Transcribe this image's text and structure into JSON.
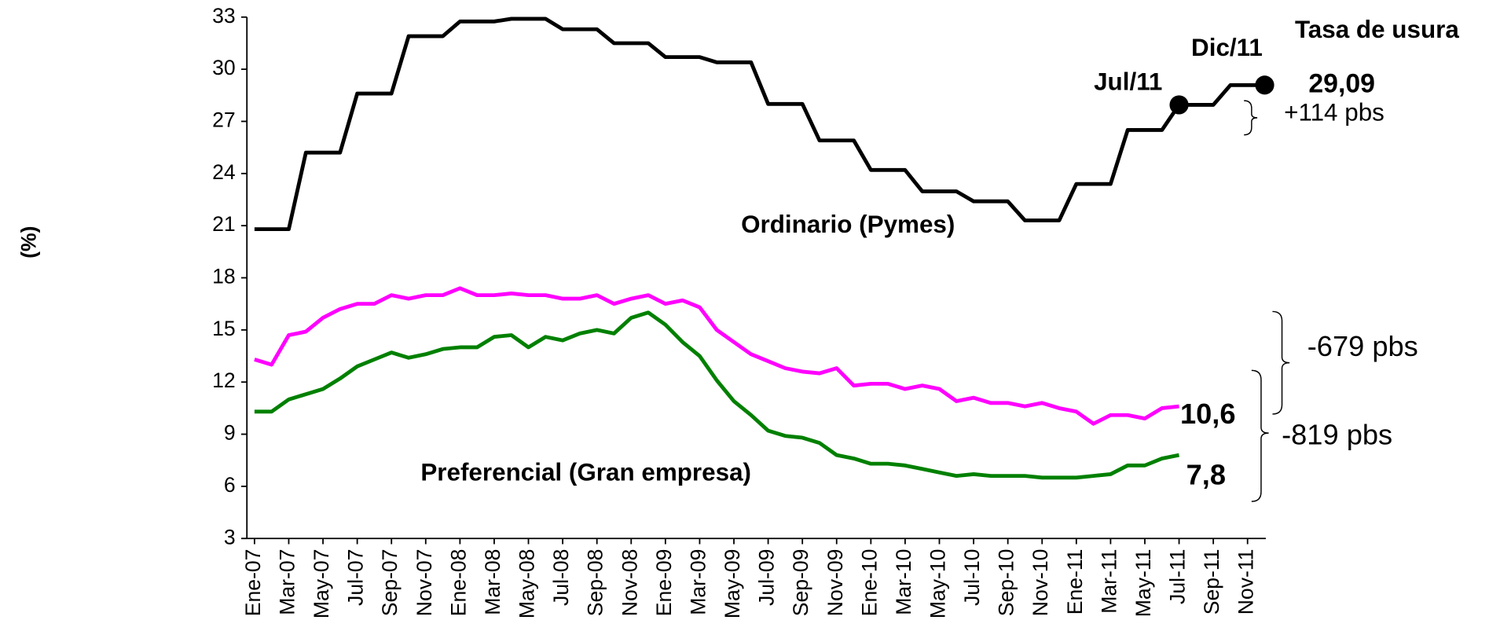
{
  "chart_data": {
    "type": "line",
    "y_label": "(%)",
    "categories": [
      "Ene-07",
      null,
      "Mar-07",
      null,
      "May-07",
      null,
      "Jul-07",
      null,
      "Sep-07",
      null,
      "Nov-07",
      null,
      "Ene-08",
      null,
      "Mar-08",
      null,
      "May-08",
      null,
      "Jul-08",
      null,
      "Sep-08",
      null,
      "Nov-08",
      null,
      "Ene-09",
      null,
      "Mar-09",
      null,
      "May-09",
      null,
      "Jul-09",
      null,
      "Sep-09",
      null,
      "Nov-09",
      null,
      "Ene-10",
      null,
      "Mar-10",
      null,
      "May-10",
      null,
      "Jul-10",
      null,
      "Sep-10",
      null,
      "Nov-10",
      null,
      "Ene-11",
      null,
      "Mar-11",
      null,
      "May-11",
      null,
      "Jul-11",
      null,
      "Sep-11",
      null,
      "Nov-11",
      null
    ],
    "series": [
      {
        "name": "Tasa de usura",
        "color": "#000000",
        "values": [
          20.8,
          20.8,
          20.8,
          25.2,
          25.2,
          25.2,
          28.6,
          28.6,
          28.6,
          31.9,
          31.9,
          31.9,
          32.75,
          32.75,
          32.75,
          32.9,
          32.9,
          32.9,
          32.3,
          32.3,
          32.3,
          31.5,
          31.5,
          31.5,
          30.7,
          30.7,
          30.7,
          30.4,
          30.4,
          30.4,
          28.0,
          28.0,
          28.0,
          25.9,
          25.9,
          25.9,
          24.2,
          24.2,
          24.2,
          22.97,
          22.97,
          22.97,
          22.4,
          22.4,
          22.4,
          21.3,
          21.3,
          21.3,
          23.4,
          23.4,
          23.4,
          26.5,
          26.5,
          26.5,
          27.95,
          27.95,
          27.95,
          29.09,
          29.09,
          29.09
        ]
      },
      {
        "name": "Ordinario (Pymes)",
        "color": "#ff00ff",
        "values": [
          13.3,
          13.0,
          14.7,
          14.9,
          15.7,
          16.2,
          16.5,
          16.5,
          17.0,
          16.8,
          17.0,
          17.0,
          17.4,
          17.0,
          17.0,
          17.1,
          17.0,
          17.0,
          16.8,
          16.8,
          17.0,
          16.5,
          16.8,
          17.0,
          16.5,
          16.7,
          16.3,
          15.0,
          14.3,
          13.6,
          13.2,
          12.8,
          12.6,
          12.5,
          12.8,
          11.8,
          11.9,
          11.9,
          11.6,
          11.8,
          11.6,
          10.9,
          11.1,
          10.8,
          10.8,
          10.6,
          10.8,
          10.5,
          10.3,
          9.6,
          10.1,
          10.1,
          9.9,
          10.5,
          10.6,
          null,
          null,
          null,
          null,
          null
        ]
      },
      {
        "name": "Preferencial (Gran empresa)",
        "color": "#008000",
        "values": [
          10.3,
          10.3,
          11.0,
          11.3,
          11.6,
          12.2,
          12.9,
          13.3,
          13.7,
          13.4,
          13.6,
          13.9,
          14.0,
          14.0,
          14.6,
          14.7,
          14.0,
          14.6,
          14.4,
          14.8,
          15.0,
          14.8,
          15.7,
          16.0,
          15.3,
          14.3,
          13.5,
          12.1,
          10.9,
          10.1,
          9.2,
          8.9,
          8.8,
          8.5,
          7.8,
          7.6,
          7.3,
          7.3,
          7.2,
          7.0,
          6.8,
          6.6,
          6.7,
          6.6,
          6.6,
          6.6,
          6.5,
          6.5,
          6.5,
          6.6,
          6.7,
          7.2,
          7.2,
          7.6,
          7.8,
          null,
          null,
          null,
          null,
          null
        ]
      }
    ],
    "annotations": [
      "Dic/11",
      "Jul/11",
      "29,09",
      "+114 pbs",
      "10,6",
      "-679 pbs",
      "7,8",
      "-819 pbs"
    ],
    "ylim": [
      3,
      33
    ],
    "yticks": [
      3,
      6,
      9,
      12,
      15,
      18,
      21,
      24,
      27,
      30,
      33
    ],
    "grid": false
  }
}
